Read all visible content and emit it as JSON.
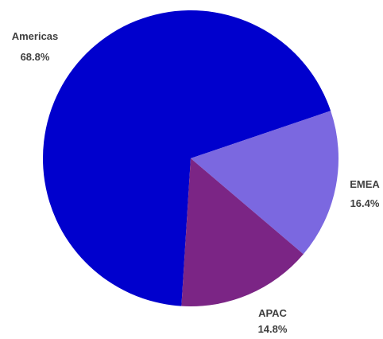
{
  "chart_data": {
    "type": "pie",
    "title": "",
    "legend": "none",
    "slices": [
      {
        "label": "Americas",
        "value": 68.8,
        "value_label": "68.8%",
        "color": "#0000CD"
      },
      {
        "label": "EMEA",
        "value": 16.4,
        "value_label": "16.4%",
        "color": "#7B68E0"
      },
      {
        "label": "APAC",
        "value": 14.8,
        "value_label": "14.8%",
        "color": "#7B2585"
      }
    ]
  }
}
